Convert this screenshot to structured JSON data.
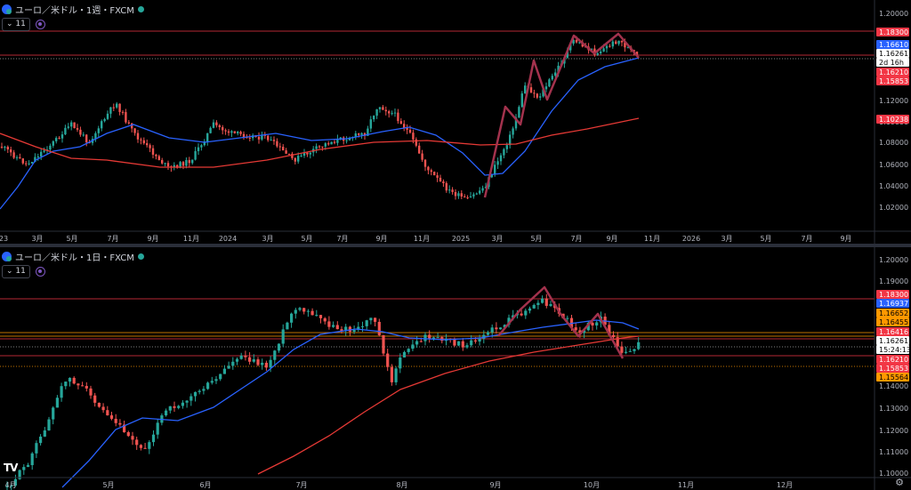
{
  "top": {
    "title": "ユーロ／米ドル・1週・FXCM",
    "interval_badge": "11",
    "y_labels": [
      "1.20000",
      "1.14000",
      "1.12000",
      "1.10000",
      "1.08000",
      "1.06000",
      "1.04000",
      "1.02000"
    ],
    "x_labels": [
      "23",
      "3月",
      "5月",
      "7月",
      "9月",
      "11月",
      "2024",
      "3月",
      "5月",
      "7月",
      "9月",
      "11月",
      "2025",
      "3月",
      "5月",
      "7月",
      "9月",
      "11月",
      "2026",
      "3月",
      "5月",
      "7月",
      "9月"
    ],
    "price_tags": [
      {
        "text": "1.18300",
        "bg": "#f23645",
        "fg": "#ffffff"
      },
      {
        "text": "1.16610",
        "bg": "#2962ff",
        "fg": "#ffffff"
      },
      {
        "text": "1.16261",
        "bg": "#ffffff",
        "fg": "#000000"
      },
      {
        "text": "2d 16h",
        "bg": "#ffffff",
        "fg": "#000000"
      },
      {
        "text": "1.16210",
        "bg": "#f23645",
        "fg": "#ffffff"
      },
      {
        "text": "1.15853",
        "bg": "#f23645",
        "fg": "#ffffff"
      },
      {
        "text": "1.10238",
        "bg": "#f23645",
        "fg": "#ffffff"
      }
    ]
  },
  "bottom": {
    "title": "ユーロ／米ドル・1日・FXCM",
    "interval_badge": "11",
    "y_labels": [
      "1.20000",
      "1.19000",
      "1.14000",
      "1.13000",
      "1.12000",
      "1.11000",
      "1.10000"
    ],
    "x_labels": [
      "4月",
      "5月",
      "6月",
      "7月",
      "8月",
      "9月",
      "10月",
      "11月",
      "12月"
    ],
    "price_tags": [
      {
        "text": "1.18300",
        "bg": "#f23645",
        "fg": "#ffffff"
      },
      {
        "text": "1.16937",
        "bg": "#2962ff",
        "fg": "#ffffff"
      },
      {
        "text": "1.16652",
        "bg": "#ff9800",
        "fg": "#000000"
      },
      {
        "text": "1.16455",
        "bg": "#ff9800",
        "fg": "#000000"
      },
      {
        "text": "1.16416",
        "bg": "#f23645",
        "fg": "#ffffff"
      },
      {
        "text": "1.16261",
        "bg": "#ffffff",
        "fg": "#000000"
      },
      {
        "text": "15:24:13",
        "bg": "#ffffff",
        "fg": "#000000"
      },
      {
        "text": "1.16210",
        "bg": "#f23645",
        "fg": "#ffffff"
      },
      {
        "text": "1.15853",
        "bg": "#f23645",
        "fg": "#ffffff"
      },
      {
        "text": "1.15564",
        "bg": "#ff9800",
        "fg": "#000000"
      }
    ]
  },
  "colors": {
    "up": "#26a69a",
    "down": "#ef5350",
    "ma_fast": "#2962ff",
    "ma_slow": "#e53935",
    "zigzag": "#a3324d"
  },
  "footer": {
    "logo": "TV",
    "settings_icon": "gear-icon"
  }
}
